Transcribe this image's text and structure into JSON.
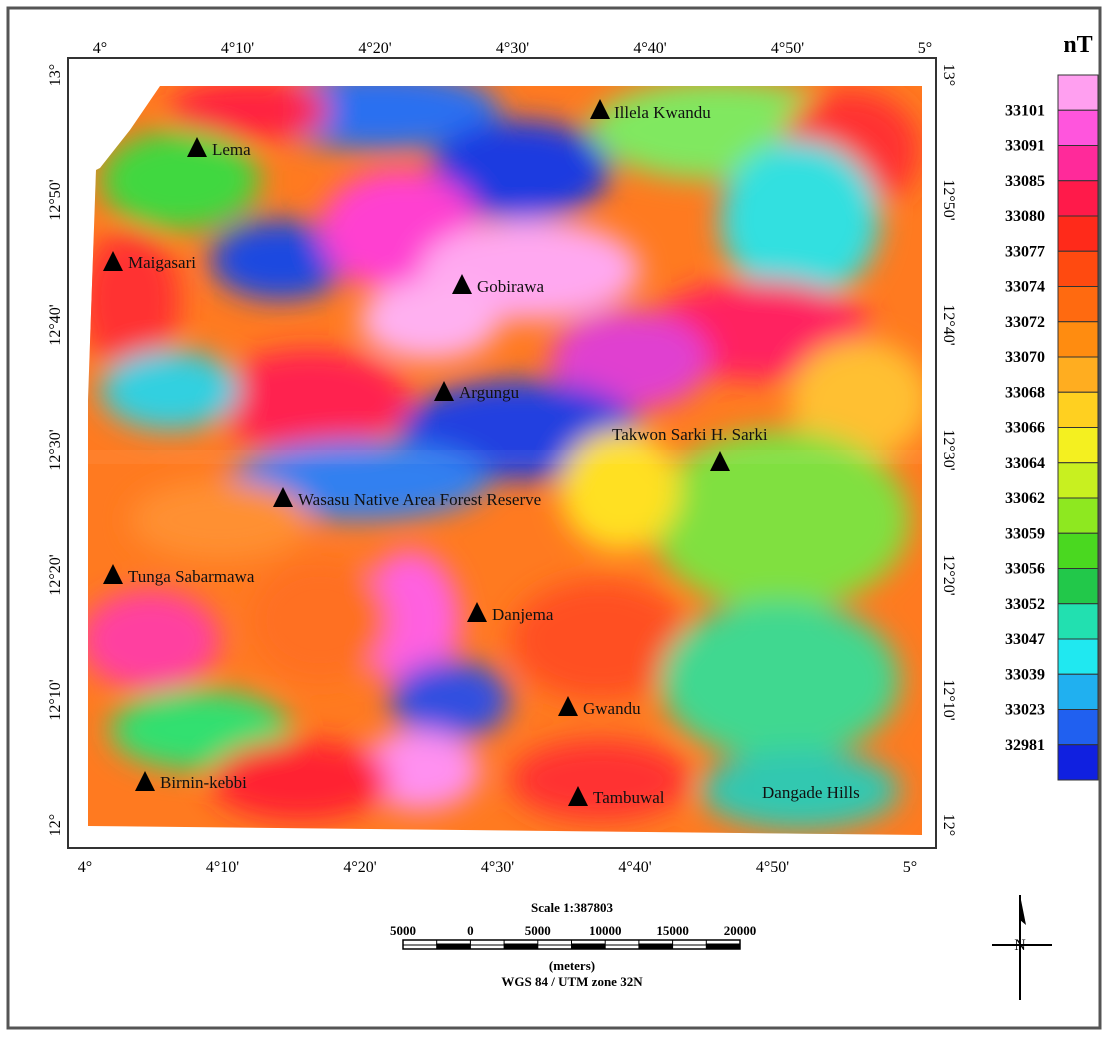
{
  "map": {
    "unit": "nT",
    "lon_ticks": [
      "4°",
      "4°10'",
      "4°20'",
      "4°30'",
      "4°40'",
      "4°50'",
      "5°"
    ],
    "lat_ticks": [
      "13°",
      "12°50'",
      "12°40'",
      "12°30'",
      "12°20'",
      "12°10'",
      "12°"
    ],
    "places": [
      "Illela Kwandu",
      "Lema",
      "Maigasari",
      "Gobirawa",
      "Argungu",
      "Takwon Sarki H. Sarki",
      "Wasasu Native Area Forest Reserve",
      "Tunga Sabarmawa",
      "Danjema",
      "Gwandu",
      "Birnin-kebbi",
      "Tambuwal",
      "Dangade Hills"
    ],
    "legend": {
      "labels": [
        33101,
        33091,
        33085,
        33080,
        33077,
        33074,
        33072,
        33070,
        33068,
        33066,
        33064,
        33062,
        33059,
        33056,
        33052,
        33047,
        33039,
        33023,
        32981
      ],
      "colors": [
        "#ff9ff0",
        "#ff55dd",
        "#ff2a9a",
        "#ff1a4a",
        "#ff2a1a",
        "#ff4a10",
        "#ff6a10",
        "#ff8c10",
        "#ffad20",
        "#ffd020",
        "#f4f020",
        "#c8f020",
        "#8ee820",
        "#4ad820",
        "#22c84a",
        "#22e0b0",
        "#20e8f0",
        "#20b0f0",
        "#2060f0",
        "#1020e0"
      ]
    },
    "scale": {
      "title": "Scale 1:387803",
      "ticks": [
        "5000",
        "0",
        "5000",
        "10000",
        "15000",
        "20000"
      ],
      "unit": "(meters)",
      "projection": "WGS 84 / UTM zone 32N"
    },
    "north": "N"
  }
}
